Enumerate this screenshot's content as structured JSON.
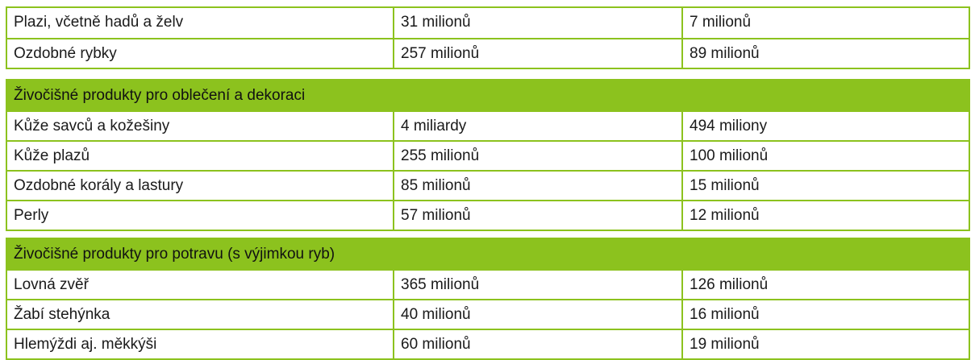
{
  "section_top": {
    "rows": [
      {
        "item": "Plazi, včetně hadů a želv",
        "value_a": "31 milionů",
        "value_b": "7 milionů"
      },
      {
        "item": "Ozdobné rybky",
        "value_a": "257 milionů",
        "value_b": "89 milionů"
      }
    ]
  },
  "section_clothing": {
    "title": "Živočišné produkty pro oblečení a dekoraci",
    "rows": [
      {
        "item": "Kůže savců a kožešiny",
        "value_a": "4 miliardy",
        "value_b": "494 miliony"
      },
      {
        "item": "Kůže plazů",
        "value_a": "255 milionů",
        "value_b": "100 milionů"
      },
      {
        "item": "Ozdobné korály a lastury",
        "value_a": "85 milionů",
        "value_b": "15 milionů"
      },
      {
        "item": "Perly",
        "value_a": "57 milionů",
        "value_b": "12 milionů"
      }
    ]
  },
  "section_food": {
    "title": "Živočišné produkty pro potravu (s výjimkou ryb)",
    "rows": [
      {
        "item": "Lovná zvěř",
        "value_a": "365 milionů",
        "value_b": "126 milionů"
      },
      {
        "item": "Žabí stehýnka",
        "value_a": "40 milionů",
        "value_b": "16 milionů"
      },
      {
        "item": "Hlemýždi aj. měkkýši",
        "value_a": "60 milionů",
        "value_b": "19 milionů"
      }
    ]
  },
  "colors": {
    "accent_green": "#8cc21e"
  }
}
